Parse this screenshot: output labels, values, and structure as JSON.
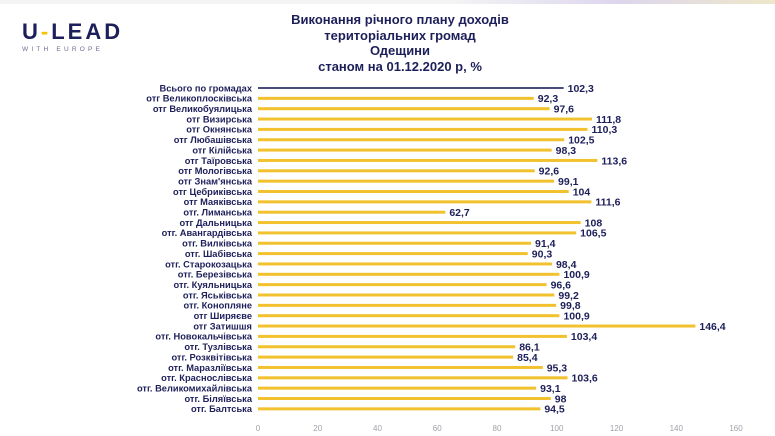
{
  "logo": {
    "main_left": "U",
    "main_dash": "-",
    "main_right": "LEAD",
    "sub": "WITH EUROPE"
  },
  "colors": {
    "bar": "#f2c12e",
    "first_bar": "#1d1f5a",
    "text": "#1d1f5a",
    "accent": "#f5c200"
  },
  "chart_data": {
    "type": "bar",
    "orientation": "horizontal",
    "title": "Виконання річного плану доходів\nтериторіальних громад\nОдещини\nстаном на 01.12.2020 р, %",
    "categories": [
      "Всього по громадах",
      "отг Великоплосківська",
      "отг Великобуялицька",
      "отг Визирська",
      "отг Окнянська",
      "отг Любашівська",
      "отг Кілійська",
      "отг Таїровська",
      "отг Мологівська",
      "отг Знам'янська",
      "отг Цебриківська",
      "отг Маяківська",
      "отг. Лиманська",
      "отг Дальницька",
      "отг. Авангардівська",
      "отг. Вилківська",
      "отг. Шабівська",
      "отг. Старокозацька",
      "отг. Березівська",
      "отг. Куяльницька",
      "отг. Яськівська",
      "отг. Конопляне",
      "отг Ширяєве",
      "отг Затишшя",
      "отг. Новокальчівська",
      "отг. Тузлівська",
      "отг. Розквітівська",
      "отг. Маразліївська",
      "отг. Краснослівська",
      "отг. Великомихайлівська",
      "отг. Біляївська",
      "отг. Балтська"
    ],
    "values": [
      102.3,
      92.3,
      97.6,
      111.8,
      110.3,
      102.5,
      98.3,
      113.6,
      92.6,
      99.1,
      104,
      111.6,
      62.7,
      108,
      106.5,
      91.4,
      90.3,
      98.4,
      100.9,
      96.6,
      99.2,
      99.8,
      100.9,
      146.4,
      103.4,
      86.1,
      85.4,
      95.3,
      103.6,
      93.1,
      98,
      94.5
    ],
    "value_labels": [
      "102,3",
      "92,3",
      "97,6",
      "111,8",
      "110,3",
      "102,5",
      "98,3",
      "113,6",
      "92,6",
      "99,1",
      "104",
      "111,6",
      "62,7",
      "108",
      "106,5",
      "91,4",
      "90,3",
      "98,4",
      "100,9",
      "96,6",
      "99,2",
      "99,8",
      "100,9",
      "146,4",
      "103,4",
      "86,1",
      "85,4",
      "95,3",
      "103,6",
      "93,1",
      "98",
      "94,5"
    ],
    "xlim": [
      0,
      160
    ],
    "xticks": [
      0,
      20,
      40,
      60,
      80,
      100,
      120,
      140,
      160
    ],
    "grid": false,
    "legend": "none"
  }
}
